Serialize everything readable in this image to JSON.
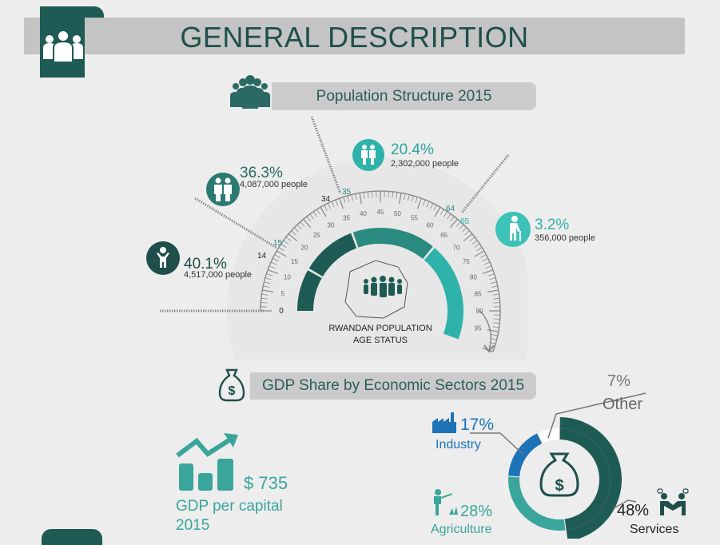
{
  "header": {
    "title": "GENERAL DESCRIPTION"
  },
  "population": {
    "section_title": "Population Structure 2015",
    "gauge_caption": [
      "RWANDAN POPULATION",
      "AGE STATUS"
    ],
    "scale_labels": [
      "0",
      "5",
      "10",
      "15",
      "20",
      "25",
      "30",
      "35",
      "40",
      "45",
      "50",
      "55",
      "60",
      "65",
      "70",
      "75",
      "80",
      "85",
      "90",
      "95"
    ],
    "boundary_labels": [
      "14",
      "15",
      "34",
      "35",
      "64",
      "65"
    ],
    "groups": [
      {
        "percent": "40.1%",
        "people": "4,517,000 people",
        "icon": "child-icon"
      },
      {
        "percent": "36.3%",
        "people": "4,087,000 people",
        "icon": "youth-icon"
      },
      {
        "percent": "20.4%",
        "people": "2,302,000 people",
        "icon": "adult-icon"
      },
      {
        "percent": "3.2%",
        "people": "356,000 people",
        "icon": "elderly-icon"
      }
    ]
  },
  "gdp": {
    "section_title": "GDP Share by Economic Sectors 2015",
    "per_capita_value": "$ 735",
    "per_capita_label": [
      "GDP per capital",
      "2015"
    ],
    "sectors": [
      {
        "percent": "17%",
        "name": "Industry",
        "share": 17,
        "color": "#1d73b8"
      },
      {
        "percent": "7%",
        "name": "Other",
        "share": 7,
        "color": "#ffffff"
      },
      {
        "percent": "48%",
        "name": "Services",
        "share": 48,
        "color": "#1e5b55"
      },
      {
        "percent": "28%",
        "name": "Agriculture",
        "share": 28,
        "color": "#3aa59a"
      }
    ]
  },
  "colors": {
    "dark_teal": "#1e5b55",
    "mid_teal": "#3aa59a",
    "cyan": "#2fb2aa",
    "blue": "#1d73b8",
    "banner_grey": "#c4c4c4"
  }
}
